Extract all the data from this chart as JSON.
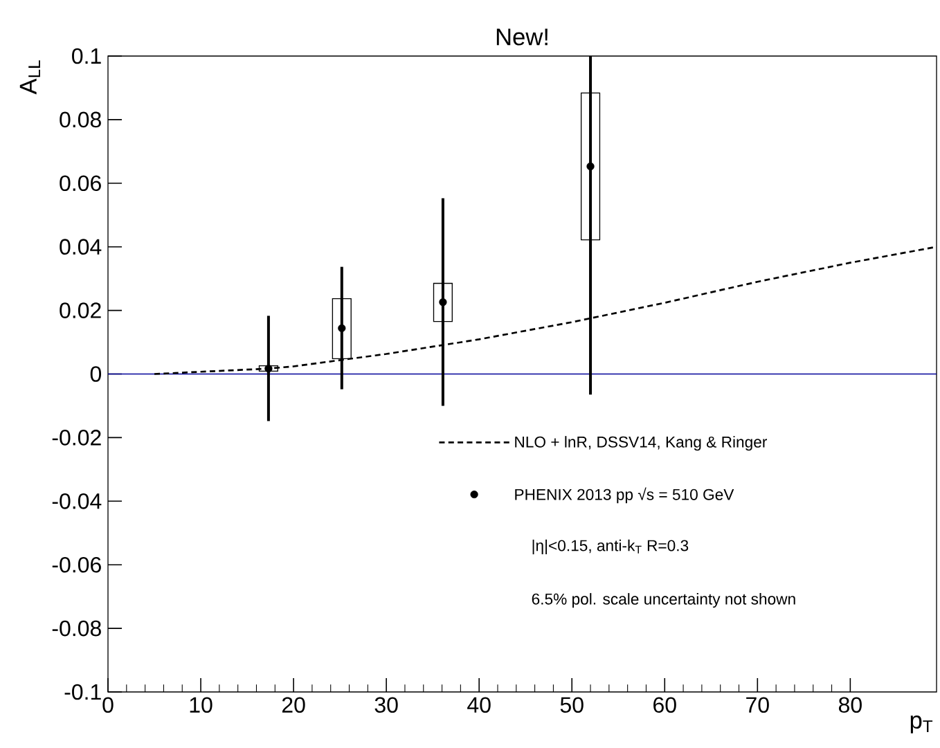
{
  "chart_data": {
    "type": "scatter",
    "title": "New!",
    "xlabel": "p$_{T}$",
    "ylabel": "A$_{LL}$",
    "xlim": [
      0,
      89.3
    ],
    "ylim": [
      -0.1,
      0.1
    ],
    "xticks": [
      0,
      10,
      20,
      30,
      40,
      50,
      60,
      70,
      80
    ],
    "yticks": [
      -0.1,
      -0.08,
      -0.06,
      -0.04,
      -0.02,
      0,
      0.02,
      0.04,
      0.06,
      0.08,
      0.1
    ],
    "grid": false,
    "legend": "bottom right",
    "series": [
      {
        "type": "bar",
        "color": "#000000",
        "x": [
          17.3,
          25.2,
          36.1,
          52.0
        ],
        "base": [
          0.0009,
          0.0048,
          0.0165,
          0.0422
        ],
        "values": [
          0.0017,
          0.0189,
          0.012,
          0.0462
        ]
      },
      {
        "name": "NLO + lnR, DSSV14, Kang & Ringer",
        "type": "line",
        "line_style": "dashed",
        "marker": "none",
        "color": "#000000",
        "x": [
          5,
          10,
          17.3,
          20,
          30,
          40,
          50,
          60,
          70,
          80,
          89.3
        ],
        "values": [
          0.0,
          0.0007,
          0.0017,
          0.0024,
          0.0063,
          0.0109,
          0.0163,
          0.0224,
          0.029,
          0.035,
          0.04
        ]
      },
      {
        "name": "PHENIX 2013 pp √s = 510 GeV",
        "marker": "circle",
        "color": "#000000",
        "x": [
          17.3,
          25.2,
          36.1,
          52.0
        ],
        "values": [
          0.0017,
          0.0144,
          0.0226,
          0.0653
        ],
        "errors": [
          [
            -0.0148,
            0.0183
          ],
          [
            -0.0048,
            0.0337
          ],
          [
            -0.01,
            0.0553
          ],
          [
            -0.0065,
            0.1
          ]
        ]
      }
    ],
    "ref_lines": [
      {
        "axis": "y",
        "value": 0,
        "color": "#000099"
      }
    ],
    "annotations": [
      "|η|<0.15, anti-k$_{T}$ R=0.3",
      "6.5% pol. scale uncertainty not shown"
    ]
  }
}
